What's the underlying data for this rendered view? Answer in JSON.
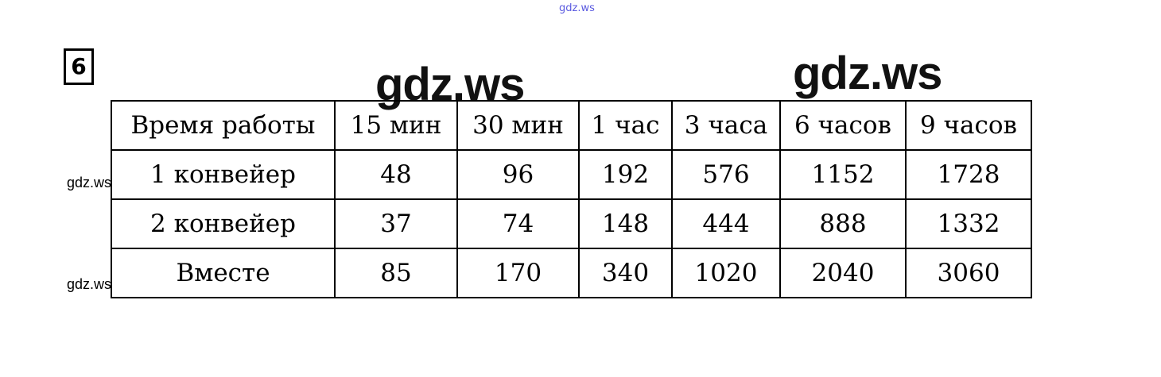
{
  "watermarks": {
    "top": "gdz.ws",
    "big_left": "gdz.ws",
    "big_right": "gdz.ws",
    "side_1": "gdz.ws",
    "side_2": "gdz.ws"
  },
  "task_number": "6",
  "table": {
    "header": [
      "Время работы",
      "15 мин",
      "30 мин",
      "1 час",
      "3 часа",
      "6 часов",
      "9 часов"
    ],
    "rows": [
      [
        "1 конвейер",
        "48",
        "96",
        "192",
        "576",
        "1152",
        "1728"
      ],
      [
        "2 конвейер",
        "37",
        "74",
        "148",
        "444",
        "888",
        "1332"
      ],
      [
        "Вместе",
        "85",
        "170",
        "340",
        "1020",
        "2040",
        "3060"
      ]
    ]
  }
}
